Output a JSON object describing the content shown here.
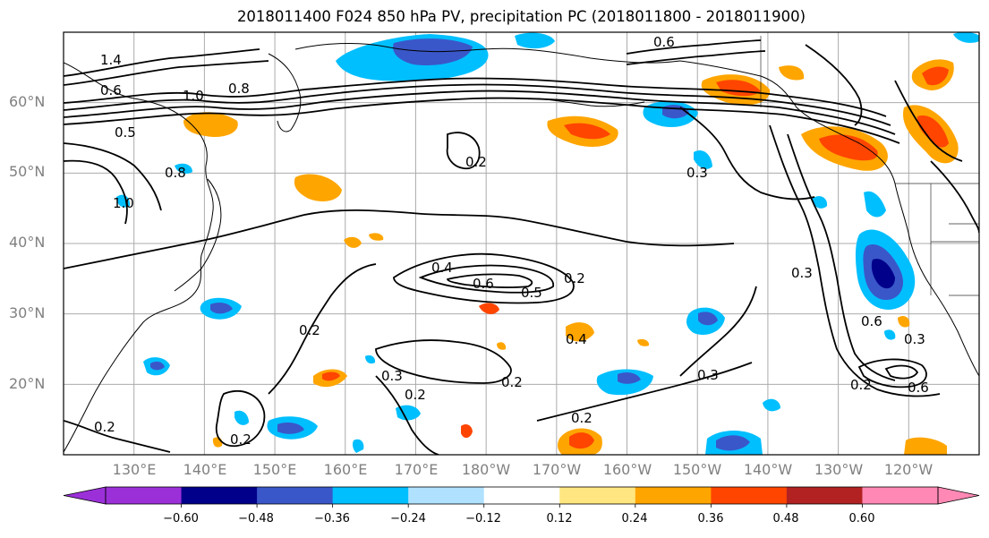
{
  "title": "2018011400 F024 850 hPa PV, precipitation PC (2018011800 - 2018011900)",
  "lat_labels": [
    "60°N",
    "50°N",
    "40°N",
    "30°N",
    "20°N"
  ],
  "lon_labels": [
    "130°E",
    "140°E",
    "150°E",
    "160°E",
    "170°E",
    "180°W",
    "170°W",
    "160°W",
    "150°W",
    "140°W",
    "130°W",
    "120°W"
  ],
  "contour_labels": [
    "1.4",
    "0.6",
    "1.0",
    "0.8",
    "0.5",
    "0.8",
    "1.0",
    "0.2",
    "0.4",
    "0.6",
    "0.5",
    "0.2",
    "0.2",
    "0.3",
    "0.2",
    "0.2",
    "0.3",
    "0.2",
    "0.3",
    "0.4",
    "0.3",
    "0.6",
    "0.3",
    "0.6",
    "0.2",
    "0.2",
    "0.2",
    "0.6"
  ],
  "colorbar": {
    "tick_labels": [
      "−0.60",
      "−0.48",
      "−0.36",
      "−0.24",
      "−0.12",
      "0.12",
      "0.24",
      "0.36",
      "0.48",
      "0.60"
    ],
    "colors": [
      "#9b30d9",
      "#00008b",
      "#3a57c9",
      "#00bfff",
      "#b0e2ff",
      "#ffffff",
      "#ffe680",
      "#ffa500",
      "#ff4500",
      "#b22222",
      "#ff89b4"
    ]
  },
  "chart_data": {
    "type": "heatmap",
    "title": "2018011400 F024 850 hPa PV, precipitation PC (2018011800 - 2018011900)",
    "projection": "cylindrical",
    "lon_range_deg_east": [
      120,
      250
    ],
    "lat_range": [
      10,
      70
    ],
    "fill_variable_levels": [
      -0.6,
      -0.48,
      -0.36,
      -0.24,
      -0.12,
      0.12,
      0.24,
      0.36,
      0.48,
      0.6
    ],
    "contour_variable_levels": [
      0.2,
      0.3,
      0.4,
      0.5,
      0.6,
      0.8,
      1.0,
      1.2,
      1.4
    ],
    "grid": true,
    "colorbar": "bottom"
  }
}
